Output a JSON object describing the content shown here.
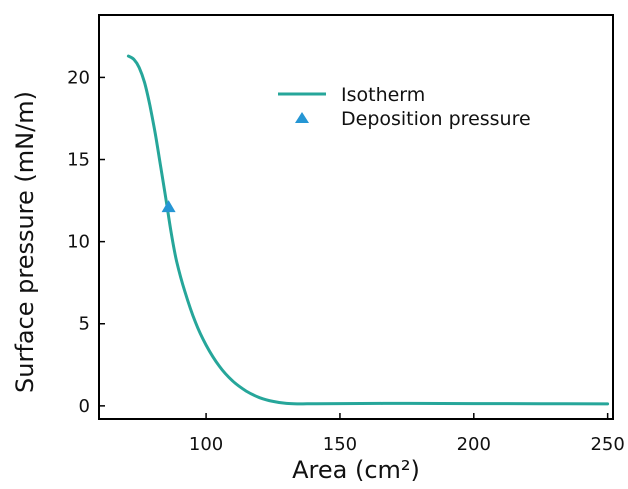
{
  "chart_data": {
    "type": "line",
    "title": "",
    "xlabel": "Area (cm²)",
    "ylabel": "Surface pressure (mN/m)",
    "xlim": [
      60,
      252
    ],
    "ylim": [
      -0.8,
      23.8
    ],
    "xticks": [
      100,
      150,
      200,
      250
    ],
    "yticks": [
      0,
      5,
      10,
      15,
      20
    ],
    "grid": false,
    "legend_position": "top-right",
    "series": [
      {
        "name": "Isotherm",
        "type": "line",
        "color": "#26a69a",
        "x": [
          71,
          73,
          75,
          77,
          79,
          81,
          83,
          85,
          87,
          89,
          92,
          96,
          100,
          105,
          110,
          115,
          120,
          125,
          130,
          135,
          140,
          150,
          175,
          200,
          225,
          250
        ],
        "y": [
          21.3,
          21.1,
          20.6,
          19.7,
          18.3,
          16.6,
          14.6,
          12.6,
          10.5,
          8.8,
          7.0,
          5.1,
          3.7,
          2.4,
          1.5,
          0.9,
          0.5,
          0.27,
          0.15,
          0.12,
          0.13,
          0.14,
          0.15,
          0.14,
          0.13,
          0.12
        ]
      },
      {
        "name": "Deposition pressure",
        "type": "scatter",
        "marker": "triangle",
        "color": "#2596d4",
        "x": [
          86
        ],
        "y": [
          12.1
        ]
      }
    ]
  }
}
